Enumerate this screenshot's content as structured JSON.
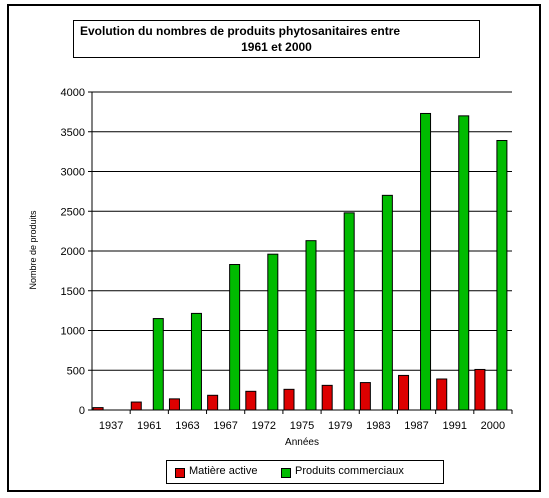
{
  "chart_data": {
    "type": "bar",
    "title_line1": "Evolution du nombres de produits phytosanitaires entre",
    "title_line2": "1961 et 2000",
    "xlabel": "Années",
    "ylabel": "Nombre de produits",
    "ylim": [
      0,
      4000
    ],
    "yticks": [
      0,
      500,
      1000,
      1500,
      2000,
      2500,
      3000,
      3500,
      4000
    ],
    "grid": true,
    "legend_position": "bottom",
    "categories": [
      "1937",
      "1961",
      "1963",
      "1967",
      "1972",
      "1975",
      "1979",
      "1983",
      "1987",
      "1991",
      "2000"
    ],
    "series": [
      {
        "name": "Matière active",
        "color": "#dd0000",
        "values": [
          30,
          100,
          140,
          185,
          235,
          260,
          310,
          345,
          435,
          390,
          510
        ]
      },
      {
        "name": "Produits commerciaux",
        "color": "#00bb00",
        "values": [
          0,
          1150,
          1215,
          1830,
          1960,
          2130,
          2480,
          2700,
          3730,
          3700,
          3390
        ]
      }
    ]
  }
}
